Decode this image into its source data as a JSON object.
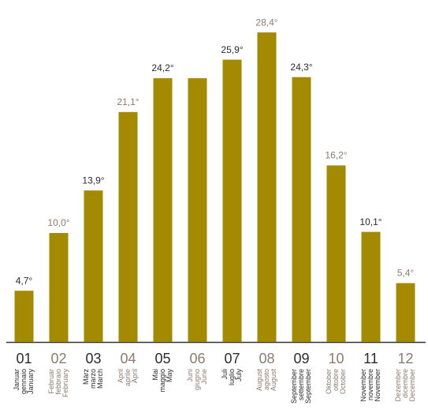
{
  "chart_data": {
    "type": "bar",
    "categories": [
      "01",
      "02",
      "03",
      "04",
      "05",
      "06",
      "07",
      "08",
      "09",
      "10",
      "11",
      "12"
    ],
    "names_de": [
      "Januar",
      "Februar",
      "März",
      "April",
      "Mai",
      "Juni",
      "Juli",
      "August",
      "September",
      "Oktober",
      "November",
      "Dezember"
    ],
    "names_it": [
      "gennaio",
      "febbraio",
      "marzo",
      "aprile",
      "maggio",
      "giugno",
      "luglio",
      "agosto",
      "settembre",
      "ottobre",
      "novembre",
      "dicembre"
    ],
    "names_en": [
      "January",
      "February",
      "March",
      "April",
      "May",
      "June",
      "July",
      "August",
      "September",
      "October",
      "November",
      "December"
    ],
    "values": [
      4.7,
      10.0,
      13.9,
      21.1,
      24.2,
      24.2,
      25.9,
      28.4,
      24.3,
      16.2,
      10.1,
      5.4
    ],
    "value_labels": [
      "4,7°",
      "10,0°",
      "13,9°",
      "21,1°",
      "24,2°",
      null,
      "25,9°",
      "28,4°",
      "24,3°",
      "16,2°",
      "10,1°",
      "5,4°"
    ],
    "color": "#a38a00",
    "ylim": [
      0,
      30
    ]
  }
}
